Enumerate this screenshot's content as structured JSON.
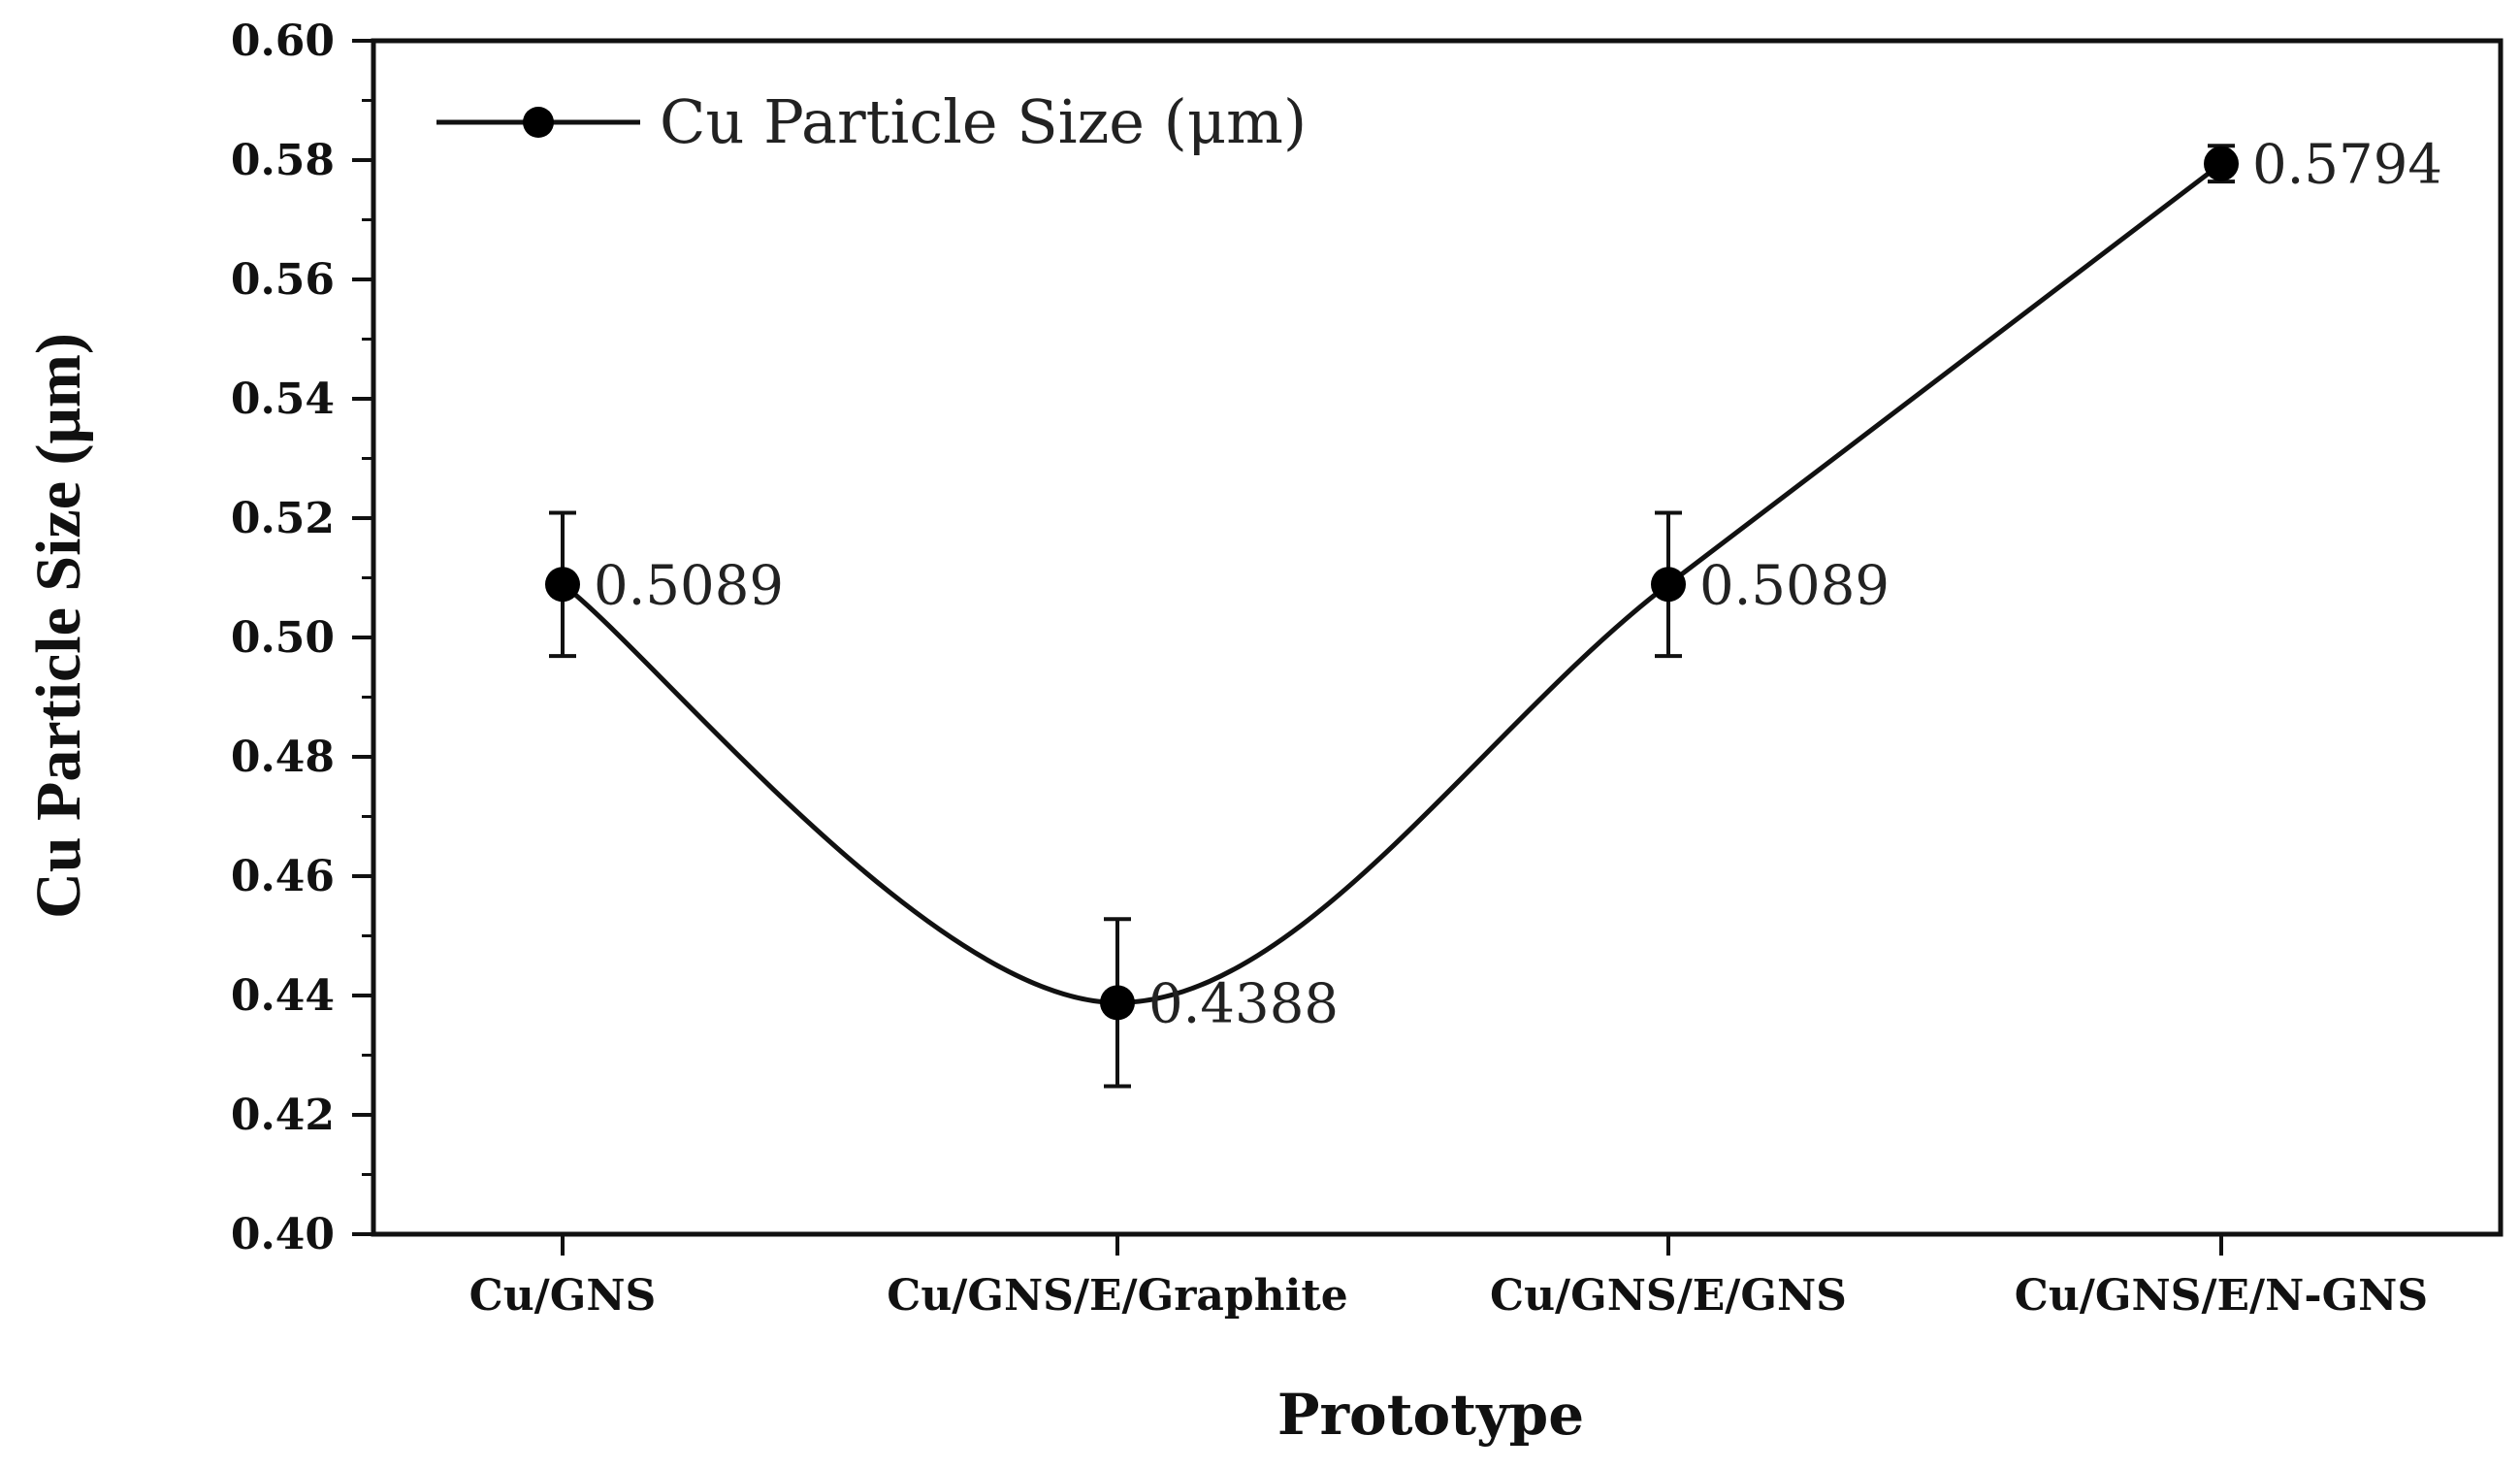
{
  "chart_data": {
    "type": "line",
    "title": "",
    "xlabel": "Prototype",
    "ylabel": "Cu Particle Size (μm)",
    "categories": [
      "Cu/GNS",
      "Cu/GNS/E/Graphite",
      "Cu/GNS/E/GNS",
      "Cu/GNS/E/N-GNS"
    ],
    "series": [
      {
        "name": "Cu Particle Size (μm)",
        "values": [
          0.5089,
          0.4388,
          0.5089,
          0.5794
        ],
        "errors": [
          0.012,
          0.014,
          0.012,
          0.003
        ],
        "data_labels": [
          "0.5089",
          "0.4388",
          "0.5089",
          "0.5794"
        ]
      }
    ],
    "ylim": [
      0.4,
      0.6
    ],
    "yticks": [
      "0.40",
      "0.42",
      "0.44",
      "0.46",
      "0.48",
      "0.50",
      "0.52",
      "0.54",
      "0.56",
      "0.58",
      "0.60"
    ],
    "grid": false,
    "legend": "top-left",
    "colors": {
      "line": "#111111",
      "marker": "#000000",
      "axis": "#111111"
    }
  }
}
